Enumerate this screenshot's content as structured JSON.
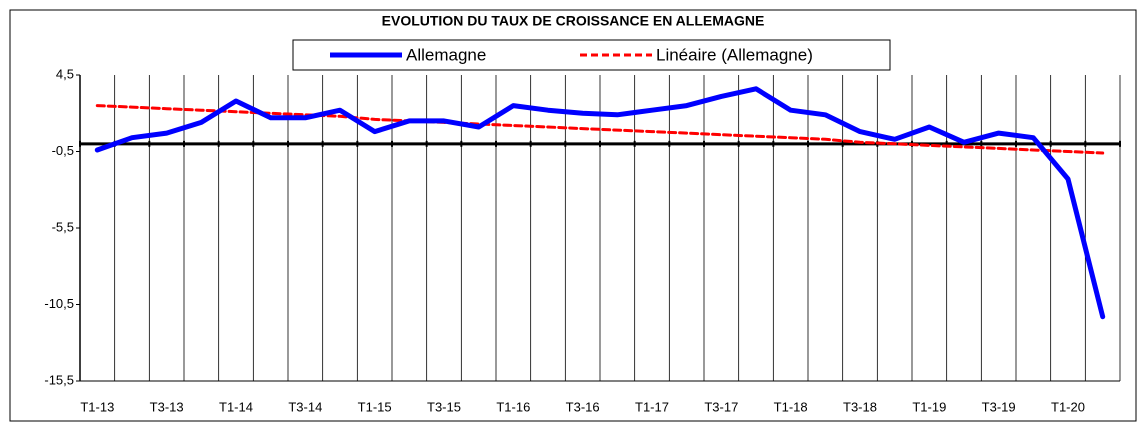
{
  "chart_data": {
    "type": "line",
    "title": "EVOLUTION DU  TAUX DE CROISSANCE EN ALLEMAGNE",
    "categories": [
      "T1-13",
      null,
      "T3-13",
      null,
      "T1-14",
      null,
      "T3-14",
      null,
      "T1-15",
      null,
      "T3-15",
      null,
      "T1-16",
      null,
      "T3-16",
      null,
      "T1-17",
      null,
      "T3-17",
      null,
      "T1-18",
      null,
      "T3-18",
      null,
      "T1-19",
      null,
      "T3-19",
      null,
      "T1-20",
      null
    ],
    "series": [
      {
        "name": "Allemagne",
        "color": "#0000ff",
        "style": "solid",
        "values": [
          -0.4,
          0.4,
          0.7,
          1.4,
          2.8,
          1.7,
          1.7,
          2.2,
          0.8,
          1.5,
          1.5,
          1.1,
          2.5,
          2.2,
          2.0,
          1.9,
          2.2,
          2.5,
          3.1,
          3.6,
          2.2,
          1.9,
          0.8,
          0.3,
          1.1,
          0.1,
          0.7,
          0.4,
          -2.3,
          -11.3
        ]
      },
      {
        "name": "Linéaire (Allemagne)",
        "color": "#ff0000",
        "style": "dashed",
        "values": [
          2.5,
          2.4,
          2.3,
          2.2,
          2.1,
          2.0,
          1.9,
          1.8,
          1.6,
          1.5,
          1.4,
          1.3,
          1.2,
          1.1,
          1.0,
          0.9,
          0.8,
          0.7,
          0.6,
          0.5,
          0.4,
          0.3,
          0.1,
          0.0,
          -0.1,
          -0.2,
          -0.3,
          -0.4,
          -0.5,
          -0.6
        ]
      }
    ],
    "ylim": [
      -15.5,
      4.5
    ],
    "yticks": [
      {
        "value": -15.5,
        "label": "-15,5"
      },
      {
        "value": -10.5,
        "label": "-10,5"
      },
      {
        "value": -5.5,
        "label": "-5,5"
      },
      {
        "value": -0.5,
        "label": "-0,5"
      },
      {
        "value": 4.5,
        "label": "4,5"
      }
    ],
    "grid": true,
    "legend": "top"
  }
}
